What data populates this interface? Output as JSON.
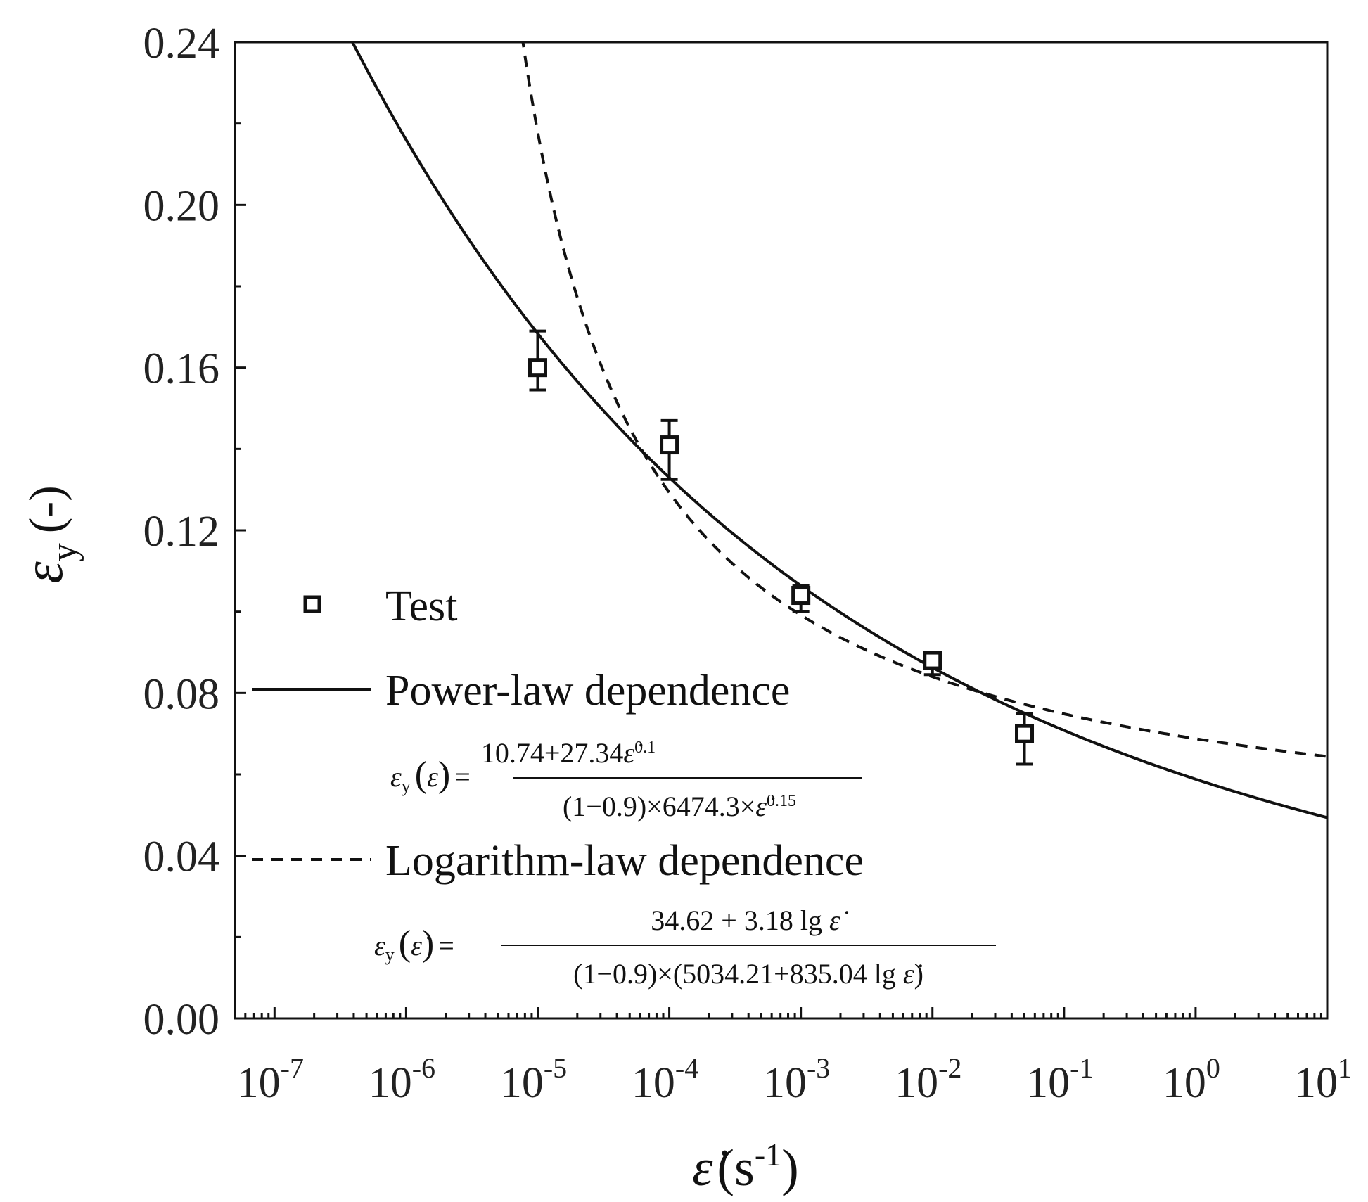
{
  "chart_data": {
    "type": "scatter",
    "x_scale": "log",
    "xlim": [
      5e-08,
      10
    ],
    "ylim": [
      0,
      0.24
    ],
    "grid": false,
    "legend_position": "center-left",
    "xlabel_main": "ε̇",
    "xlabel_unit": "(s",
    "xlabel_unit_exp": "-1",
    "xlabel_unit_close": ")",
    "ylabel_symbol": "ε",
    "ylabel_sub": "y",
    "ylabel_unit": "(-)",
    "x_ticks": [
      {
        "value": 1e-07,
        "base": "10",
        "exp": "-7"
      },
      {
        "value": 1e-06,
        "base": "10",
        "exp": "-6"
      },
      {
        "value": 1e-05,
        "base": "10",
        "exp": "-5"
      },
      {
        "value": 0.0001,
        "base": "10",
        "exp": "-4"
      },
      {
        "value": 0.001,
        "base": "10",
        "exp": "-3"
      },
      {
        "value": 0.01,
        "base": "10",
        "exp": "-2"
      },
      {
        "value": 0.1,
        "base": "10",
        "exp": "-1"
      },
      {
        "value": 1,
        "base": "10",
        "exp": "0"
      },
      {
        "value": 10,
        "base": "10",
        "exp": "1"
      }
    ],
    "y_ticks": [
      {
        "value": 0.0,
        "label": "0.00"
      },
      {
        "value": 0.04,
        "label": "0.04"
      },
      {
        "value": 0.08,
        "label": "0.08"
      },
      {
        "value": 0.12,
        "label": "0.12"
      },
      {
        "value": 0.16,
        "label": "0.16"
      },
      {
        "value": 0.2,
        "label": "0.20"
      },
      {
        "value": 0.24,
        "label": "0.24"
      }
    ],
    "series": [
      {
        "name": "Test",
        "kind": "scatter",
        "marker": "open-square",
        "points": [
          {
            "x": 1e-05,
            "y": 0.16,
            "err_low": 0.0055,
            "err_high": 0.009
          },
          {
            "x": 0.0001,
            "y": 0.141,
            "err_low": 0.0085,
            "err_high": 0.006
          },
          {
            "x": 0.001,
            "y": 0.104,
            "err_low": 0.004,
            "err_high": 0.0025
          },
          {
            "x": 0.01,
            "y": 0.088,
            "err_low": 0.0035,
            "err_high": 0.0015
          },
          {
            "x": 0.05,
            "y": 0.07,
            "err_low": 0.0075,
            "err_high": 0.005
          }
        ]
      },
      {
        "name": "Power-law dependence",
        "kind": "line",
        "style": "solid",
        "formula": {
          "numerator": "10.74+27.34ε̇^0.1",
          "denominator": "(1−0.9)×6474.3×ε̇^0.15"
        }
      },
      {
        "name": "Logarithm-law dependence",
        "kind": "line",
        "style": "dashed",
        "formula": {
          "numerator": "34.62 + 3.18 lg ε̇",
          "denominator": "(1−0.9)×(5034.21+835.04 lg ε̇)"
        }
      }
    ],
    "equations": {
      "lhs_symbol": "ε",
      "lhs_sub": "y",
      "lhs_arg": "ε̇",
      "power": {
        "num": "10.74+27.34",
        "num_var": "ε̇",
        "num_exp": "0.1",
        "den": "(1−0.9)×6474.3×",
        "den_var": "ε̇",
        "den_exp": "0.15"
      },
      "log": {
        "num": "34.62 + 3.18 lg ",
        "num_var": "ε̇",
        "den": "(1−0.9)×(5034.21+835.04 lg ",
        "den_var": "ε̇",
        "den_close": ")"
      }
    },
    "colors": {
      "axis": "#111111",
      "line": "#111111",
      "marker": "#111111"
    }
  }
}
